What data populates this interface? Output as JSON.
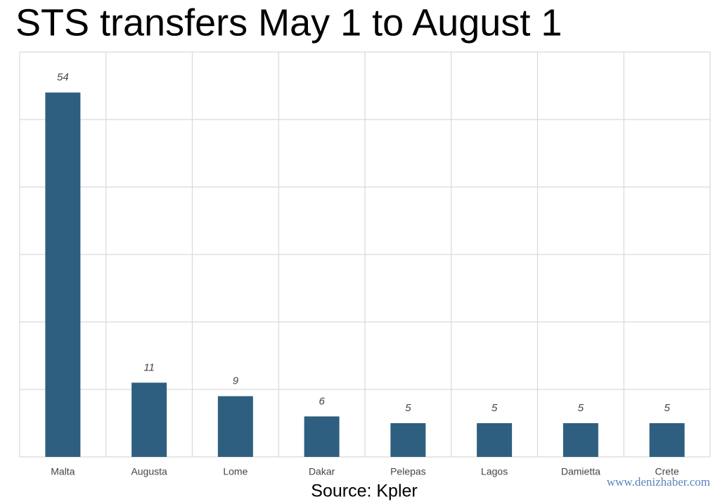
{
  "chart_data": {
    "type": "bar",
    "title": "STS transfers  May 1 to August 1",
    "categories": [
      "Malta",
      "Augusta",
      "Lome",
      "Dakar",
      "Pelepas",
      "Lagos",
      "Damietta",
      "Crete"
    ],
    "values": [
      54,
      11,
      9,
      6,
      5,
      5,
      5,
      5
    ],
    "color": "#2e5f80",
    "ylim": [
      0,
      60
    ],
    "yticks": [
      0,
      10,
      20,
      30,
      40,
      50,
      60
    ],
    "grid": true,
    "source": "Source: Kpler",
    "watermark": "www.denizhaber.com"
  }
}
